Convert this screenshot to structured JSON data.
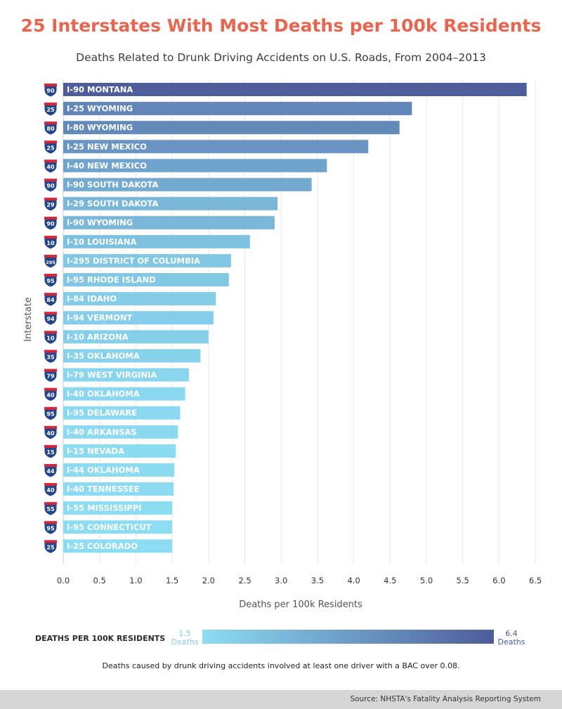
{
  "chart_data": {
    "type": "bar",
    "orientation": "horizontal",
    "title": "25 Interstates With Most Deaths per 100k Residents",
    "subtitle": "Deaths Related to Drunk Driving Accidents on U.S. Roads, From 2004–2013",
    "xlabel": "Deaths per 100k Residents",
    "ylabel": "Interstate",
    "xlim": [
      0,
      6.5
    ],
    "xticks": [
      "0.0",
      "0.5",
      "1.0",
      "1.5",
      "2.0",
      "2.5",
      "3.0",
      "3.5",
      "4.0",
      "4.5",
      "5.0",
      "5.5",
      "6.0",
      "6.5"
    ],
    "bars": [
      {
        "route": "90",
        "label": "I-90 MONTANA",
        "value": 6.38
      },
      {
        "route": "25",
        "label": "I-25 WYOMING",
        "value": 4.8
      },
      {
        "route": "80",
        "label": "I-80 WYOMING",
        "value": 4.63
      },
      {
        "route": "25",
        "label": "I-25 NEW MEXICO",
        "value": 4.2
      },
      {
        "route": "40",
        "label": "I-40 NEW MEXICO",
        "value": 3.63
      },
      {
        "route": "90",
        "label": "I-90 SOUTH DAKOTA",
        "value": 3.42
      },
      {
        "route": "29",
        "label": "I-29 SOUTH DAKOTA",
        "value": 2.95
      },
      {
        "route": "90",
        "label": "I-90 WYOMING",
        "value": 2.91
      },
      {
        "route": "10",
        "label": "I-10 LOUISIANA",
        "value": 2.57
      },
      {
        "route": "295",
        "label": "I-295 DISTRICT OF COLUMBIA",
        "value": 2.31
      },
      {
        "route": "95",
        "label": "I-95 RHODE ISLAND",
        "value": 2.28
      },
      {
        "route": "84",
        "label": "I-84 IDAHO",
        "value": 2.1
      },
      {
        "route": "94",
        "label": "I-94 VERMONT",
        "value": 2.07
      },
      {
        "route": "10",
        "label": "I-10 ARIZONA",
        "value": 2.0
      },
      {
        "route": "35",
        "label": "I-35 OKLAHOMA",
        "value": 1.89
      },
      {
        "route": "79",
        "label": "I-79 WEST VIRGINIA",
        "value": 1.73
      },
      {
        "route": "40",
        "label": "I-40 OKLAHOMA",
        "value": 1.68
      },
      {
        "route": "95",
        "label": "I-95 DELAWARE",
        "value": 1.61
      },
      {
        "route": "40",
        "label": "I-40 ARKANSAS",
        "value": 1.58
      },
      {
        "route": "15",
        "label": "I-15 NEVADA",
        "value": 1.55
      },
      {
        "route": "44",
        "label": "I-44 OKLAHOMA",
        "value": 1.53
      },
      {
        "route": "40",
        "label": "I-40 TENNESSEE",
        "value": 1.52
      },
      {
        "route": "55",
        "label": "I-55 MISSISSIPPI",
        "value": 1.5
      },
      {
        "route": "95",
        "label": "I-95 CONNECTICUT",
        "value": 1.5
      },
      {
        "route": "25",
        "label": "I-25 COLORADO",
        "value": 1.5
      }
    ],
    "color_scale": {
      "min": 1.5,
      "max": 6.4,
      "min_color": "#8cdcf2",
      "max_color": "#4e5c9a"
    },
    "legend": {
      "title": "DEATHS PER 100K RESIDENTS",
      "min_value": "1.5",
      "min_unit": "Deaths",
      "max_value": "6.4",
      "max_unit": "Deaths"
    },
    "footnote": "Deaths caused by drunk driving accidents involved at least one driver with a BAC over 0.08.",
    "source": "Source: NHSTA's Fatality Analysis Reporting System"
  },
  "colors": {
    "title": "#e9654f",
    "shield_top": "#d8253a",
    "shield_body": "#23478a"
  }
}
